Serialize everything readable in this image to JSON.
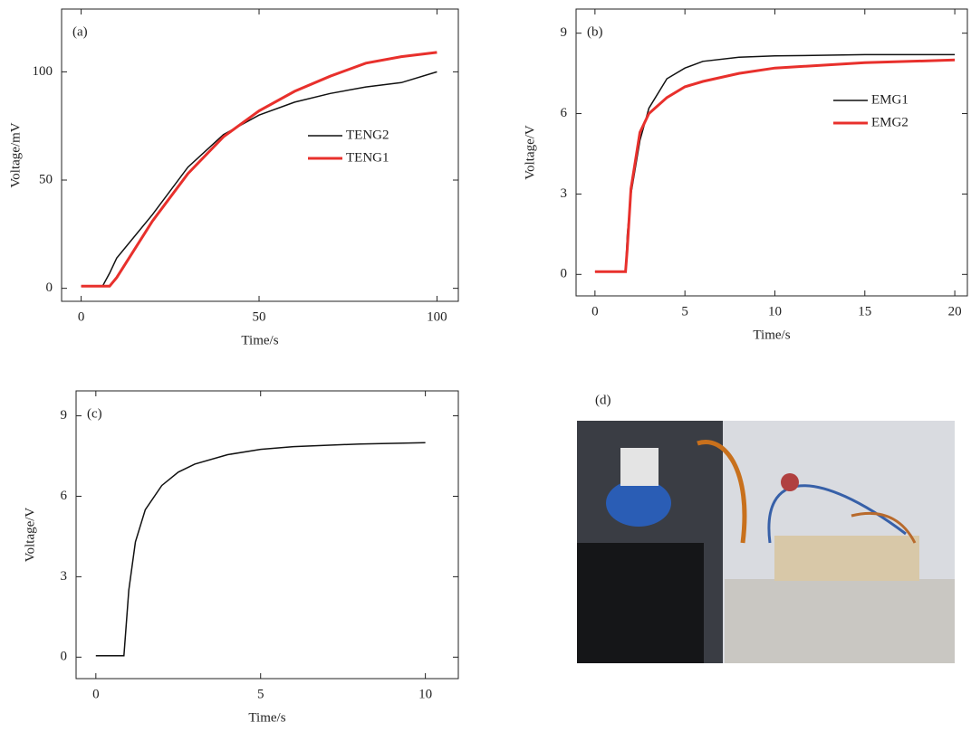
{
  "chart_data": [
    {
      "type": "line",
      "title": "(a)",
      "x_label": "Time/s",
      "y_label": "Voltage/mV",
      "xlim": [
        -5.5,
        106
      ],
      "ylim": [
        -6,
        129
      ],
      "xticks": [
        0,
        50,
        100
      ],
      "yticks": [
        0,
        50,
        100
      ],
      "x": [
        0,
        6,
        8,
        10,
        20,
        30,
        40,
        50,
        60,
        70,
        80,
        90,
        100
      ],
      "series": [
        {
          "name": "TENG2",
          "color": "#111111",
          "values": [
            1,
            1,
            7,
            14,
            34,
            56,
            71,
            80,
            86,
            90,
            93,
            95,
            100
          ]
        },
        {
          "name": "TENG1",
          "color": "#e8302c",
          "values": [
            1,
            1,
            1,
            5,
            31,
            53,
            70,
            82,
            91,
            98,
            104,
            107,
            109
          ]
        }
      ]
    },
    {
      "type": "line",
      "title": "(b)",
      "x_label": "Time/s",
      "y_label": "Voltage/V",
      "xlim": [
        -1.05,
        20.7
      ],
      "ylim": [
        -0.8,
        9.9
      ],
      "xticks": [
        0,
        5,
        10,
        15,
        20
      ],
      "yticks": [
        0,
        3,
        6,
        9
      ],
      "x": [
        0,
        1.7,
        1.8,
        2,
        2.5,
        3,
        4,
        5,
        6,
        8,
        10,
        15,
        20
      ],
      "series": [
        {
          "name": "EMG1",
          "color": "#111111",
          "values": [
            0.1,
            0.1,
            1.5,
            3,
            5,
            6.2,
            7.3,
            7.7,
            7.95,
            8.1,
            8.15,
            8.2,
            8.2
          ]
        },
        {
          "name": "EMG2",
          "color": "#e8302c",
          "values": [
            0.1,
            0.1,
            1,
            3.2,
            5.3,
            6,
            6.6,
            7,
            7.2,
            7.5,
            7.7,
            7.9,
            8
          ]
        }
      ]
    },
    {
      "type": "line",
      "title": "(c)",
      "x_label": "Time/s",
      "y_label": "Voltage/V",
      "xlim": [
        -0.6,
        11
      ],
      "ylim": [
        -0.8,
        9.93
      ],
      "xticks": [
        0,
        5,
        10
      ],
      "yticks": [
        0,
        3,
        6,
        9
      ],
      "x": [
        0,
        0.85,
        1,
        1.2,
        1.5,
        2,
        2.5,
        3,
        4,
        5,
        6,
        8,
        10
      ],
      "series": [
        {
          "color": "#111111",
          "values": [
            0.05,
            0.05,
            2.5,
            4.3,
            5.5,
            6.4,
            6.9,
            7.2,
            7.55,
            7.75,
            7.85,
            7.95,
            8
          ]
        }
      ]
    }
  ],
  "photo": {
    "label": "(d)"
  }
}
